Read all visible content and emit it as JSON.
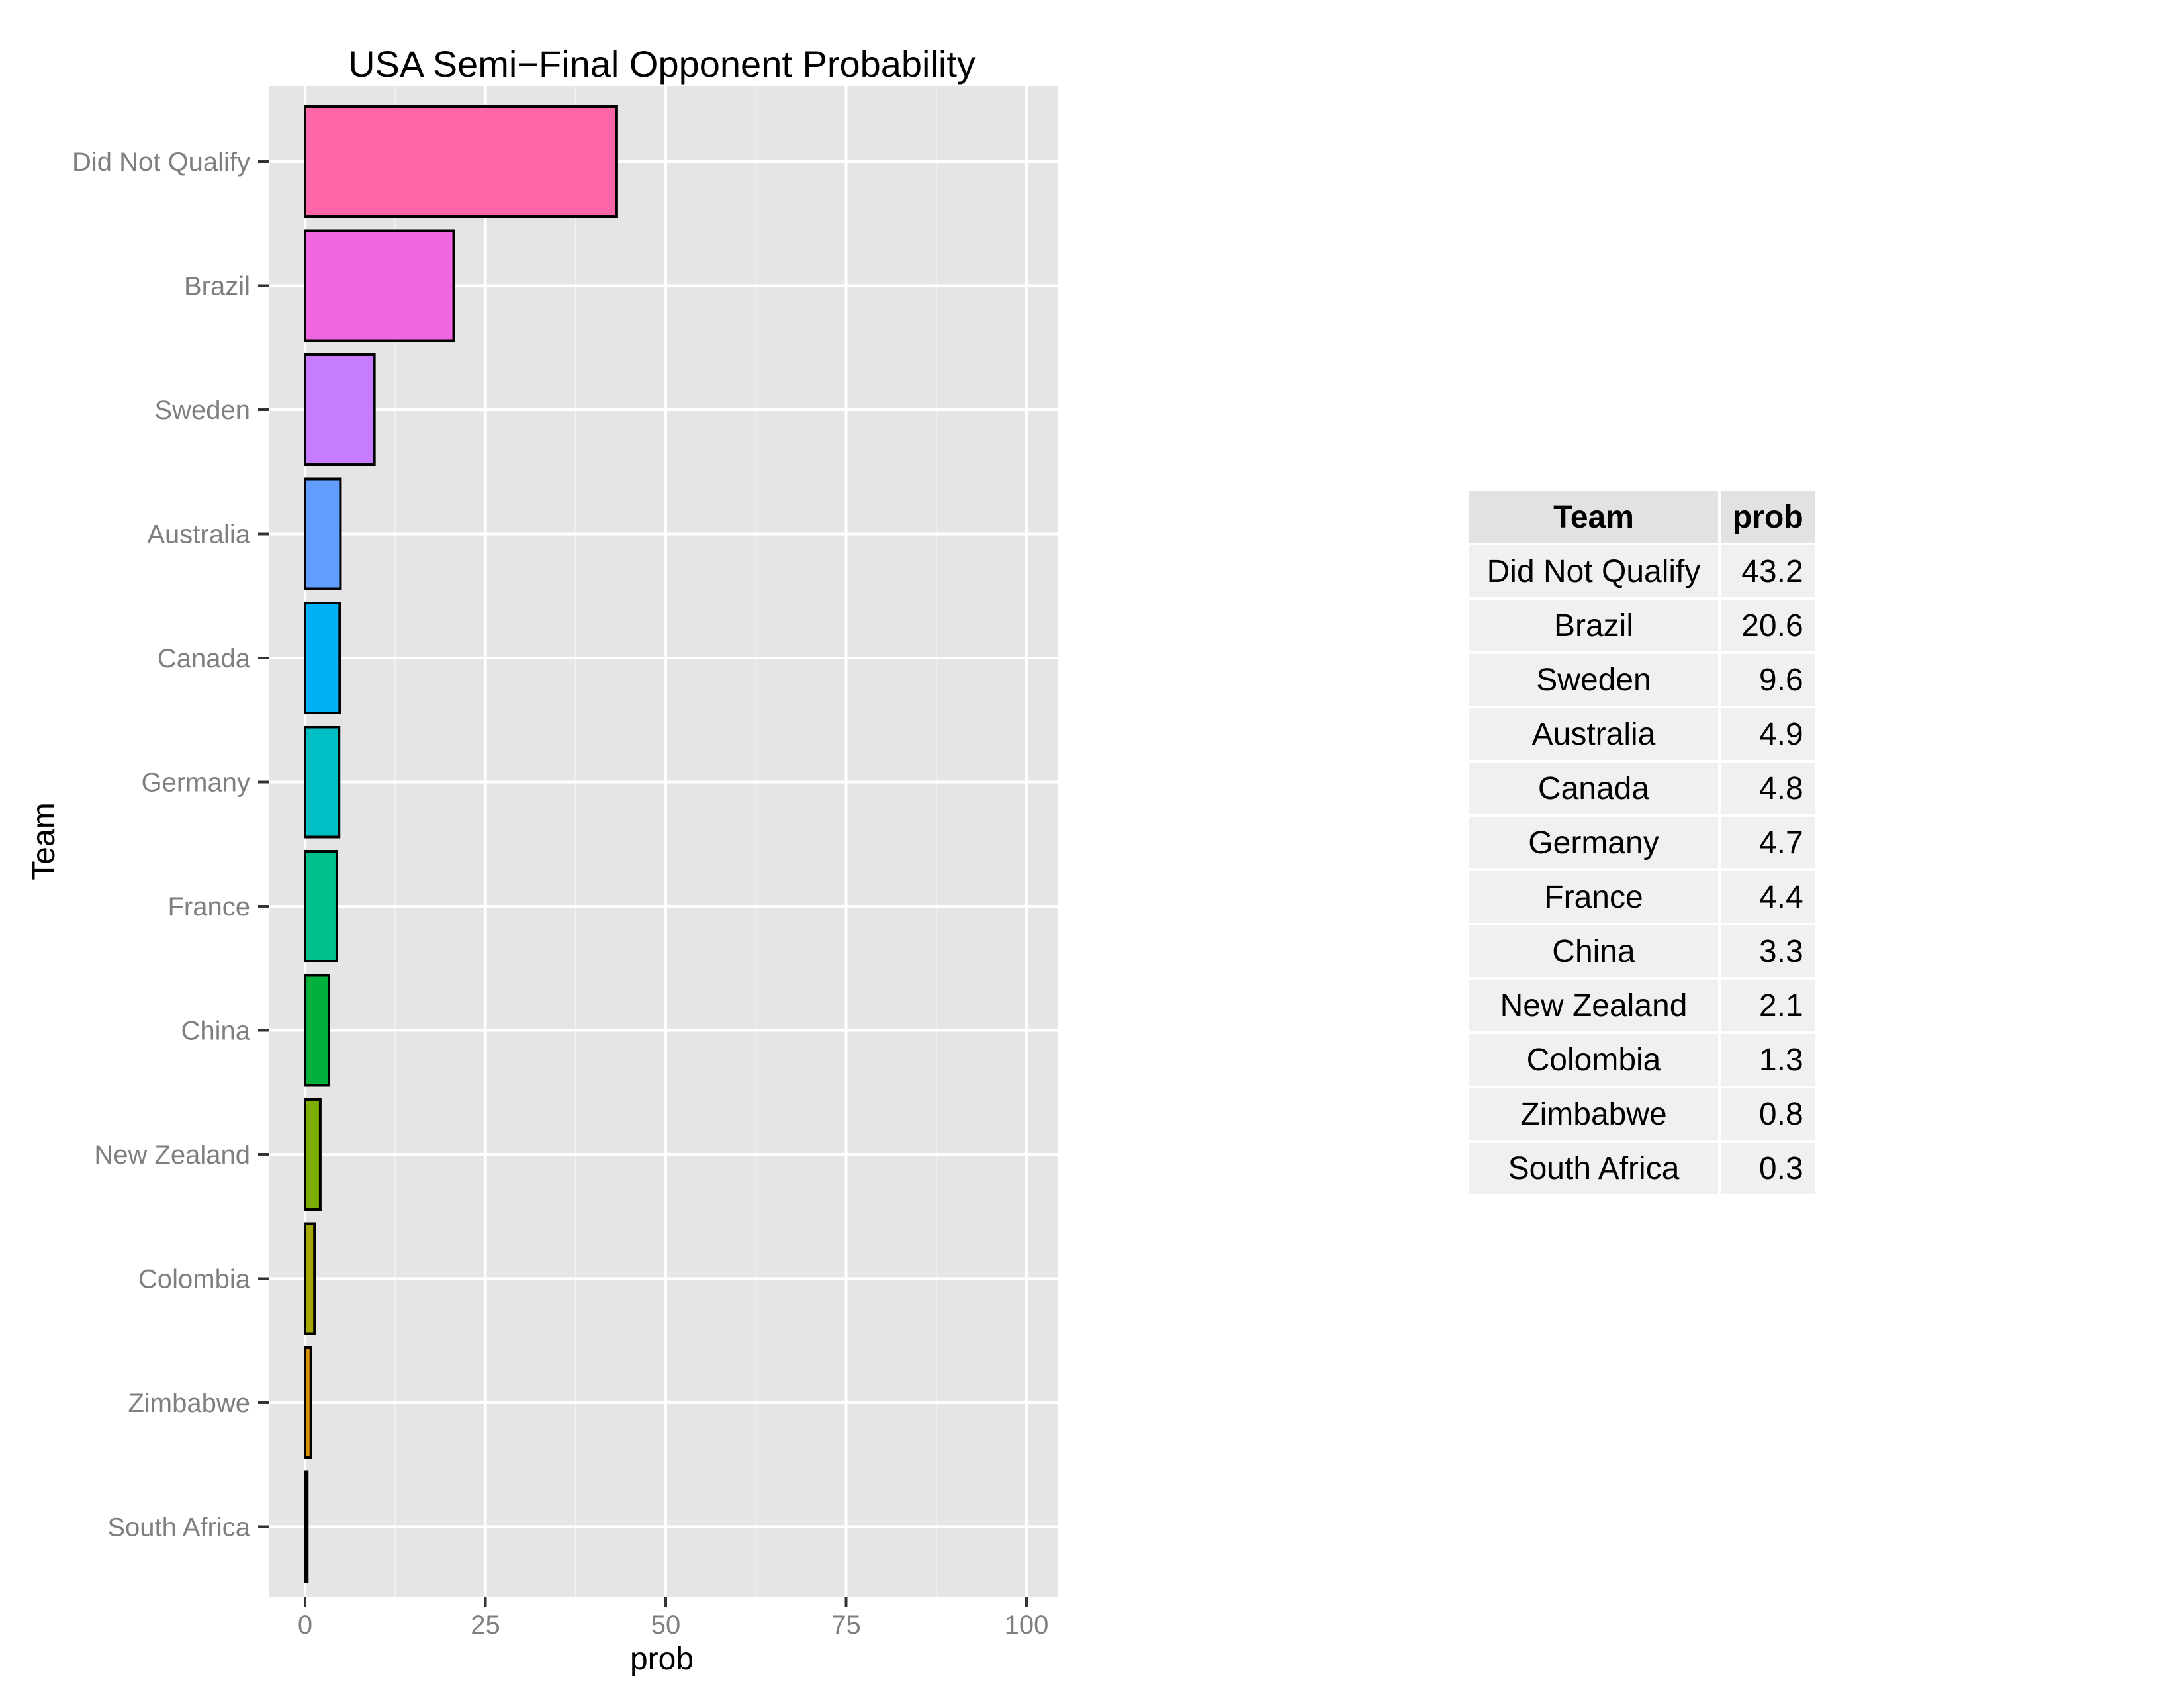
{
  "chart_data": {
    "type": "bar",
    "orientation": "horizontal",
    "title": "USA Semi−Final Opponent Probability",
    "xlabel": "prob",
    "ylabel": "Team",
    "xlim": [
      0,
      100
    ],
    "xticks": [
      0,
      25,
      50,
      75,
      100
    ],
    "grid": true,
    "categories": [
      "Did Not Qualify",
      "Brazil",
      "Sweden",
      "Australia",
      "Canada",
      "Germany",
      "France",
      "China",
      "New Zealand",
      "Colombia",
      "Zimbabwe",
      "South Africa"
    ],
    "values": [
      43.2,
      20.6,
      9.6,
      4.9,
      4.8,
      4.7,
      4.4,
      3.3,
      2.1,
      1.3,
      0.8,
      0.3
    ],
    "colors": [
      "#FF66AA",
      "#F265E3",
      "#C77CFF",
      "#619CFF",
      "#00B0F6",
      "#00BFC4",
      "#00C08B",
      "#00B13C",
      "#7CAE00",
      "#A3A500",
      "#D89000",
      "#F8766D"
    ]
  },
  "table": {
    "headers": [
      "Team",
      "prob"
    ],
    "rows": [
      [
        "Did Not Qualify",
        "43.2"
      ],
      [
        "Brazil",
        "20.6"
      ],
      [
        "Sweden",
        "9.6"
      ],
      [
        "Australia",
        "4.9"
      ],
      [
        "Canada",
        "4.8"
      ],
      [
        "Germany",
        "4.7"
      ],
      [
        "France",
        "4.4"
      ],
      [
        "China",
        "3.3"
      ],
      [
        "New Zealand",
        "2.1"
      ],
      [
        "Colombia",
        "1.3"
      ],
      [
        "Zimbabwe",
        "0.8"
      ],
      [
        "South Africa",
        "0.3"
      ]
    ]
  }
}
